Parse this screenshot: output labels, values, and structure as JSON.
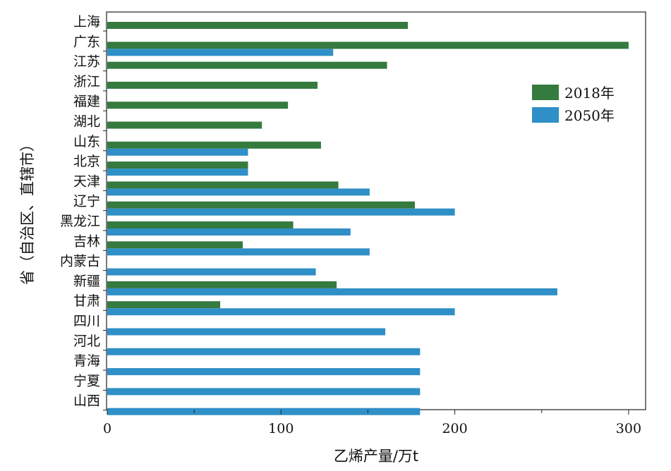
{
  "chart_data": {
    "type": "bar",
    "orientation": "horizontal",
    "title": "",
    "xlabel": "乙烯产量/万t",
    "ylabel": "省（自治区、直辖市）",
    "xlim": [
      0,
      310
    ],
    "xticks": [
      0,
      100,
      200,
      300
    ],
    "grid": false,
    "legend_position": "top-right",
    "categories": [
      "上海",
      "广东",
      "江苏",
      "浙江",
      "福建",
      "湖北",
      "山东",
      "北京",
      "天津",
      "辽宁",
      "黑龙江",
      "吉林",
      "内蒙古",
      "新疆",
      "甘肃",
      "四川",
      "河北",
      "青海",
      "宁夏",
      "山西"
    ],
    "series": [
      {
        "name": "2018年",
        "color": "#357a3f",
        "values": [
          173,
          300,
          161,
          121,
          104,
          89,
          123,
          81,
          133,
          177,
          107,
          78,
          null,
          132,
          65,
          null,
          null,
          null,
          null,
          null
        ]
      },
      {
        "name": "2050年",
        "color": "#2f8fc7",
        "values": [
          null,
          130,
          null,
          null,
          null,
          null,
          81,
          81,
          151,
          200,
          140,
          151,
          120,
          259,
          200,
          160,
          180,
          180,
          180,
          180
        ]
      }
    ]
  }
}
